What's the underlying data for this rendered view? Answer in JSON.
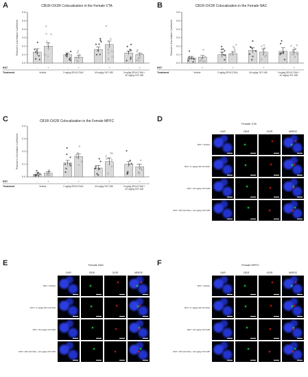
{
  "charts": [
    {
      "letter": "A",
      "title": "CB1R-OX2R Colocalization in the Female VTA",
      "ylabel": "Pearson's Correlation Coefficient",
      "ylim": [
        0,
        0.6
      ],
      "yticks": [
        "0.0",
        "0.1",
        "0.2",
        "0.3",
        "0.4",
        "0.5",
        "0.6"
      ],
      "rst_label": "RST",
      "treatment_label": "Treatment",
      "rst_signs": [
        "-",
        "+",
        "-",
        "+",
        "-",
        "+",
        "-",
        "+"
      ],
      "treatments": [
        "Vehicle",
        "3 mg/kg SR141716A",
        "40 mg/kg YNT-185",
        "3 mg/kg SR141716A + 40 mg/kg YNT-185"
      ],
      "bars": [
        0.13,
        0.2,
        0.1,
        0.07,
        0.16,
        0.22,
        0.12,
        0.1
      ],
      "err": [
        0.04,
        0.04,
        0.02,
        0.02,
        0.03,
        0.04,
        0.02,
        0.02
      ]
    },
    {
      "letter": "B",
      "title": "CB1R-OX2R Colocalization in the Female NAC",
      "ylabel": "Pearson's Correlation Coefficient",
      "ylim": [
        0,
        0.6
      ],
      "yticks": [
        "0.0",
        "0.1",
        "0.2",
        "0.3",
        "0.4",
        "0.5",
        "0.6"
      ],
      "rst_label": "RST",
      "treatment_label": "Treatment",
      "rst_signs": [
        "-",
        "+",
        "-",
        "+",
        "-",
        "+",
        "-",
        "+"
      ],
      "treatments": [
        "Vehicle",
        "3 mg/kg SR141716A",
        "40 mg/kg YNT-185",
        "3 mg/kg SR141716A + 40 mg/kg YNT-185"
      ],
      "bars": [
        0.06,
        0.07,
        0.1,
        0.11,
        0.15,
        0.13,
        0.14,
        0.13
      ],
      "err": [
        0.02,
        0.02,
        0.03,
        0.02,
        0.03,
        0.04,
        0.04,
        0.03
      ]
    },
    {
      "letter": "C",
      "title": "CB1R-OX2R Colocalization in the Female MPFC",
      "ylabel": "Pearson's Correlation Coefficient",
      "ylim": [
        0,
        0.4
      ],
      "yticks": [
        "0.0",
        "0.1",
        "0.2",
        "0.3",
        "0.4"
      ],
      "rst_label": "RST",
      "treatment_label": "Treatment",
      "rst_signs": [
        "-",
        "+",
        "-",
        "+",
        "-",
        "+",
        "-",
        "+"
      ],
      "treatments": [
        "Vehicle",
        "3 mg/kg SR141716A",
        "40 mg/kg YNT-185",
        "3 mg/kg SR141716A + 40 mg/kg YNT-185"
      ],
      "bars": [
        0.02,
        0.03,
        0.11,
        0.16,
        0.07,
        0.12,
        0.1,
        0.08
      ],
      "err": [
        0.01,
        0.01,
        0.02,
        0.02,
        0.02,
        0.03,
        0.02,
        0.02
      ]
    }
  ],
  "figures": [
    {
      "letter": "D",
      "title": "Female VTA",
      "columns": [
        "DAPI",
        "CB1R",
        "OX2R",
        "MERGE"
      ],
      "rows": [
        "RST / Vehicle",
        "RST / 3 mg/kg SR 141716A",
        "RST / 40 mg/kg YNT-185",
        "RST / SR 141716A + 40 mg/kg YNT-185"
      ]
    },
    {
      "letter": "E",
      "title": "Female NAC",
      "columns": [
        "DAPI",
        "CB1R",
        "OX2R",
        "MERGE"
      ],
      "rows": [
        "RST / Vehicle",
        "RST / 3 mg/kg SR 141716A",
        "RST / 40 mg/kg YNT-185",
        "RST / SR 141716A + 40 mg/kg YNT-185"
      ]
    },
    {
      "letter": "F",
      "title": "Female MPFC",
      "columns": [
        "DAPI",
        "CB1R",
        "OX2R",
        "MERGE"
      ],
      "rows": [
        "RST / Vehicle",
        "RST / 3 mg/kg SR 141716A",
        "RST / 40 mg/kg YNT-185",
        "RST / SR 141716A + 40 mg/kg YNT-185"
      ]
    }
  ],
  "colors": {
    "bar_fill": "#d9d9d9",
    "dapi": "#2233cc",
    "cb1r": "#22dd44",
    "ox2r": "#dd2222"
  }
}
